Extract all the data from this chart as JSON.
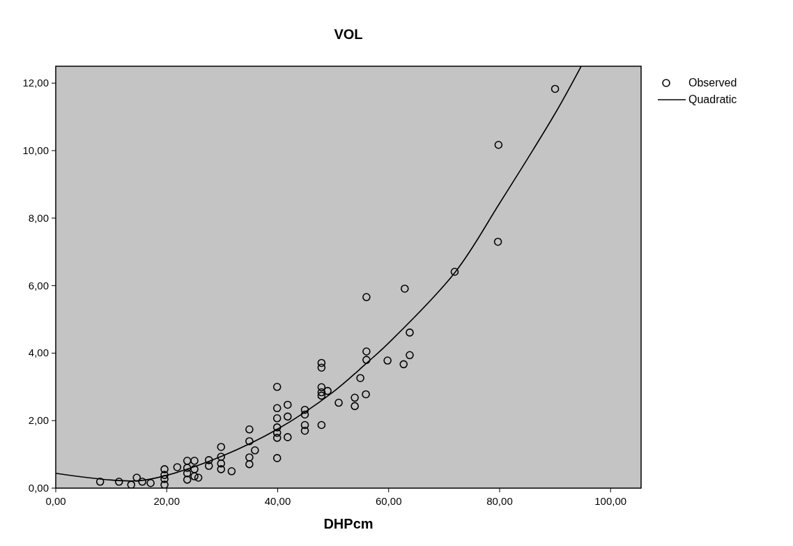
{
  "chart_data": {
    "type": "scatter",
    "title": "VOL",
    "xlabel": "DHPcm",
    "xlim": [
      0,
      105.5
    ],
    "ylim": [
      0,
      12.5
    ],
    "xticks": [
      {
        "value": 0,
        "label": "0,00"
      },
      {
        "value": 20,
        "label": "20,00"
      },
      {
        "value": 40,
        "label": "40,00"
      },
      {
        "value": 60,
        "label": "60,00"
      },
      {
        "value": 80,
        "label": "80,00"
      },
      {
        "value": 100,
        "label": "100,00"
      }
    ],
    "yticks": [
      {
        "value": 0,
        "label": "0,00"
      },
      {
        "value": 2,
        "label": "2,00"
      },
      {
        "value": 4,
        "label": "4,00"
      },
      {
        "value": 6,
        "label": "6,00"
      },
      {
        "value": 8,
        "label": "8,00"
      },
      {
        "value": 10,
        "label": "10,00"
      },
      {
        "value": 12,
        "label": "12,00"
      }
    ],
    "grid": false,
    "legend": "top right",
    "series": [
      {
        "name": "Observed",
        "marker": "circle",
        "color": "#000000",
        "x": [
          8.0,
          11.4,
          13.6,
          14.6,
          15.6,
          17.1,
          19.6,
          19.6,
          19.6,
          19.6,
          21.9,
          23.7,
          23.7,
          23.7,
          23.7,
          25.0,
          25.0,
          25.0,
          25.7,
          27.6,
          27.6,
          29.8,
          29.8,
          29.8,
          29.8,
          31.7,
          34.9,
          34.9,
          35.9,
          34.9,
          34.9,
          39.9,
          39.9,
          39.9,
          39.9,
          39.9,
          39.9,
          39.9,
          41.8,
          41.8,
          41.8,
          44.9,
          44.9,
          44.9,
          44.9,
          47.9,
          47.9,
          47.9,
          47.9,
          47.9,
          49.0,
          47.9,
          51.0,
          53.9,
          53.9,
          54.9,
          55.9,
          56.0,
          56.0,
          56.0,
          59.8,
          62.7,
          62.9,
          63.8,
          63.8,
          71.9,
          79.7,
          79.8,
          90.0
        ],
        "values": [
          0.19,
          0.19,
          0.1,
          0.31,
          0.19,
          0.15,
          0.56,
          0.39,
          0.27,
          0.1,
          0.62,
          0.81,
          0.6,
          0.44,
          0.25,
          0.81,
          0.56,
          0.35,
          0.31,
          0.83,
          0.66,
          1.22,
          0.93,
          0.73,
          0.56,
          0.5,
          1.74,
          1.39,
          1.12,
          0.91,
          0.71,
          3.0,
          2.37,
          2.07,
          1.8,
          1.64,
          1.49,
          0.89,
          2.47,
          2.12,
          1.51,
          2.32,
          2.18,
          1.87,
          1.7,
          1.87,
          3.71,
          3.57,
          2.99,
          2.84,
          2.88,
          2.74,
          2.53,
          2.68,
          2.43,
          3.26,
          2.78,
          5.66,
          4.05,
          3.8,
          3.78,
          3.67,
          5.91,
          4.61,
          3.94,
          6.41,
          7.3,
          10.17,
          11.83
        ]
      },
      {
        "name": "Quadratic",
        "type": "line",
        "marker": "none",
        "line_style": "solid",
        "color": "#000000",
        "x": [
          0,
          10,
          15,
          20,
          30,
          40,
          50,
          56,
          60,
          72,
          80,
          90,
          94.7
        ],
        "values": [
          0.44,
          0.24,
          0.22,
          0.38,
          0.95,
          1.75,
          2.85,
          3.7,
          4.3,
          6.4,
          8.44,
          11.1,
          12.5
        ]
      }
    ]
  }
}
